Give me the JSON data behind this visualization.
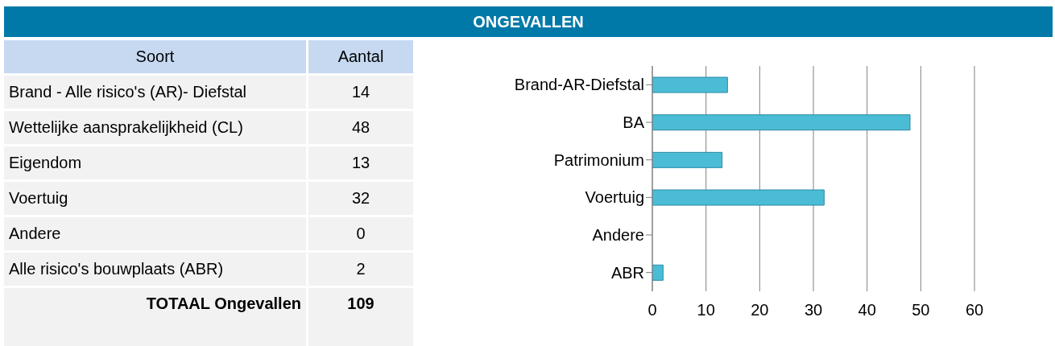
{
  "chart_data": [
    {
      "type": "other",
      "title": "ONGEVALLEN",
      "xlabel": "Soort",
      "ylabel": "Aantal",
      "categories": [
        "Brand - Alle risico's (AR)- Diefstal",
        "Wettelijke aansprakelijkheid (CL)",
        "Eigendom",
        "Voertuig",
        "Andere",
        "Alle risico's bouwplaats (ABR)"
      ],
      "values": [
        14,
        48,
        13,
        32,
        0,
        2
      ],
      "data_labels": true,
      "annotations": [
        "TOTAAL Ongevallen",
        "109"
      ]
    },
    {
      "type": "bar",
      "orientation": "horizontal",
      "categories": [
        "Brand-AR-Diefstal",
        "BA",
        "Patrimonium",
        "Voertuig",
        "Andere",
        "ABR"
      ],
      "values": [
        14,
        48,
        13,
        32,
        0,
        2
      ],
      "color": "#4bbcd6",
      "xlim": [
        0,
        60
      ],
      "xticks": [
        0,
        10,
        20,
        30,
        40,
        50,
        60
      ],
      "grid": "x"
    }
  ]
}
